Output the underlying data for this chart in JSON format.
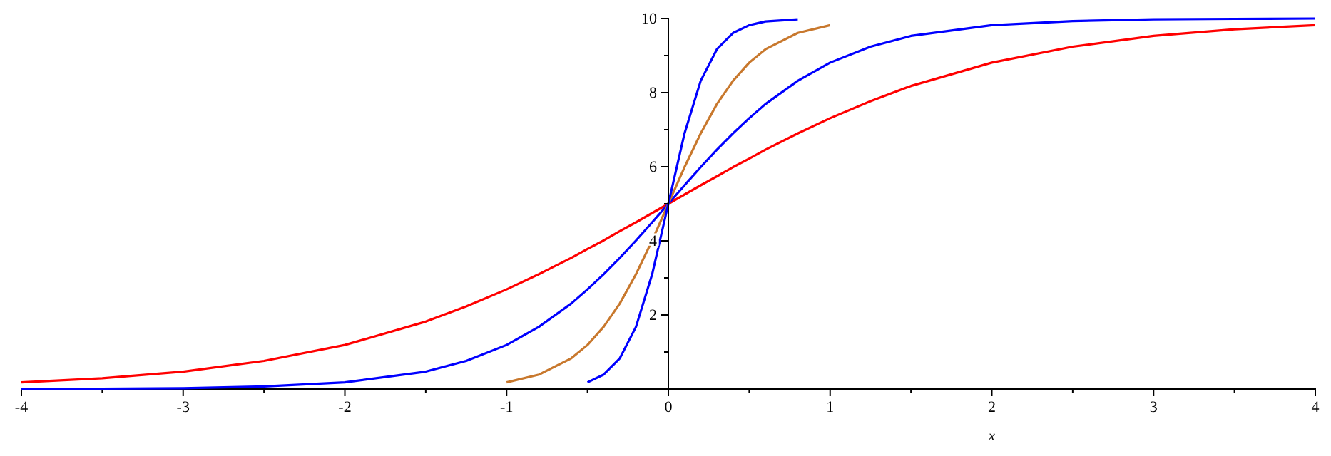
{
  "chart_data": {
    "type": "line",
    "xlabel": "x",
    "xlim": [
      -4,
      4
    ],
    "ylim": [
      0,
      10
    ],
    "xticks": [
      -4,
      {
        "value": -3.5,
        "label": null
      },
      -3,
      {
        "value": -2.5,
        "label": null
      },
      -2,
      {
        "value": -1.5,
        "label": null
      },
      -1,
      {
        "value": -0.5,
        "label": null
      },
      0,
      {
        "value": 0.5,
        "label": null
      },
      1,
      {
        "value": 1.5,
        "label": null
      },
      2,
      {
        "value": 2.5,
        "label": null
      },
      3,
      {
        "value": 3.5,
        "label": null
      },
      4
    ],
    "yticks": [
      {
        "value": 1,
        "label": null
      },
      2,
      {
        "value": 3,
        "label": null
      },
      4,
      {
        "value": 5,
        "label": null
      },
      6,
      {
        "value": 7,
        "label": null
      },
      8,
      {
        "value": 9,
        "label": null
      },
      10
    ],
    "marker": "none",
    "line_style": "solid",
    "x": [
      -4,
      -3.5,
      -3,
      -2.5,
      -2,
      -1.5,
      -1.25,
      -1,
      -0.8,
      -0.6,
      -0.5,
      -0.4,
      -0.3,
      -0.2,
      -0.1,
      0,
      0.1,
      0.2,
      0.3,
      0.4,
      0.5,
      0.6,
      0.8,
      1,
      1.25,
      1.5,
      2,
      2.5,
      3,
      3.5,
      4
    ],
    "series": [
      {
        "color": "#ff0000",
        "values": [
          0.18,
          0.29,
          0.47,
          0.76,
          1.19,
          1.82,
          2.23,
          2.69,
          3.1,
          3.54,
          3.78,
          4.01,
          4.26,
          4.5,
          4.75,
          5,
          5.25,
          5.5,
          5.74,
          5.99,
          6.22,
          6.46,
          6.9,
          7.31,
          7.77,
          8.18,
          8.81,
          9.24,
          9.53,
          9.71,
          9.82
        ]
      },
      {
        "color": "#0000ff",
        "values": [
          0,
          0.01,
          0.02,
          0.07,
          0.18,
          0.47,
          0.76,
          1.19,
          1.68,
          2.31,
          2.69,
          3.1,
          3.54,
          4.01,
          4.5,
          5,
          5.5,
          5.99,
          6.46,
          6.9,
          7.31,
          7.69,
          8.32,
          8.81,
          9.24,
          9.53,
          9.82,
          9.93,
          9.98,
          9.99,
          10
        ]
      },
      {
        "color": "#c8782d",
        "x": [
          -1,
          -0.8,
          -0.6,
          -0.5,
          -0.4,
          -0.3,
          -0.2,
          -0.1,
          0,
          0.1,
          0.2,
          0.3,
          0.4,
          0.5,
          0.6,
          0.8,
          1
        ],
        "values": [
          0.18,
          0.39,
          0.83,
          1.19,
          1.68,
          2.31,
          3.1,
          4.01,
          5,
          5.99,
          6.9,
          7.69,
          8.32,
          8.81,
          9.17,
          9.61,
          9.82
        ]
      },
      {
        "color": "#0000ff",
        "x": [
          -0.5,
          -0.4,
          -0.3,
          -0.2,
          -0.1,
          0,
          0.1,
          0.2,
          0.3,
          0.4,
          0.5,
          0.6,
          0.8
        ],
        "values": [
          0.18,
          0.39,
          0.83,
          1.68,
          3.1,
          5,
          6.9,
          8.32,
          9.17,
          9.61,
          9.82,
          9.92,
          9.98
        ]
      }
    ]
  }
}
